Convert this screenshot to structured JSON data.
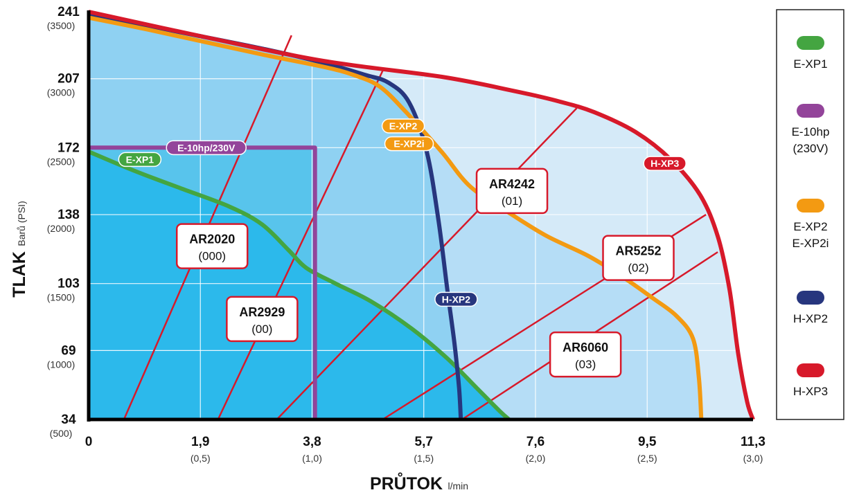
{
  "chart_data": {
    "type": "line",
    "y_axis": {
      "title": "TLAK",
      "unit": "Barů (PSI)",
      "ticks": [
        {
          "value": 34,
          "label": "34",
          "sublabel": "(500)"
        },
        {
          "value": 69,
          "label": "69",
          "sublabel": "(1000)"
        },
        {
          "value": 103,
          "label": "103",
          "sublabel": "(1500)"
        },
        {
          "value": 138,
          "label": "138",
          "sublabel": "(2000)"
        },
        {
          "value": 172,
          "label": "172",
          "sublabel": "(2500)"
        },
        {
          "value": 207,
          "label": "207",
          "sublabel": "(3000)"
        },
        {
          "value": 241,
          "label": "241",
          "sublabel": "(3500)"
        }
      ],
      "range": [
        34,
        241
      ]
    },
    "x_axis": {
      "title": "PRŮTOK",
      "unit": "l/min",
      "ticks": [
        {
          "value": 0,
          "label": "0",
          "sublabel": ""
        },
        {
          "value": 1.9,
          "label": "1,9",
          "sublabel": "(0,5)"
        },
        {
          "value": 3.8,
          "label": "3,8",
          "sublabel": "(1,0)"
        },
        {
          "value": 5.7,
          "label": "5,7",
          "sublabel": "(1,5)"
        },
        {
          "value": 7.6,
          "label": "7,6",
          "sublabel": "(2,0)"
        },
        {
          "value": 9.5,
          "label": "9,5",
          "sublabel": "(2,5)"
        },
        {
          "value": 11.3,
          "label": "11,3",
          "sublabel": "(3,0)"
        }
      ],
      "range": [
        0,
        11.3
      ]
    },
    "grid": true,
    "series": [
      {
        "name": "H-XP3",
        "color": "#d7192a",
        "fill": "#d5eaf8",
        "points": [
          [
            0,
            241
          ],
          [
            2.0,
            228
          ],
          [
            4.0,
            216
          ],
          [
            6.0,
            208
          ],
          [
            7.2,
            201
          ],
          [
            8.0,
            195.5
          ],
          [
            8.6,
            190
          ],
          [
            9.3,
            180
          ],
          [
            9.9,
            166
          ],
          [
            10.4,
            148
          ],
          [
            10.7,
            127
          ],
          [
            10.9,
            100
          ],
          [
            11.05,
            67
          ],
          [
            11.2,
            43
          ],
          [
            11.3,
            34
          ]
        ]
      },
      {
        "name": "E-XP2",
        "color": "#f39a12",
        "fill": "#b5ddf6",
        "points": [
          [
            0,
            238
          ],
          [
            1.0,
            232
          ],
          [
            2.0,
            225.5
          ],
          [
            3.0,
            219
          ],
          [
            4.0,
            213
          ],
          [
            4.5,
            209
          ],
          [
            4.95,
            203
          ],
          [
            5.4,
            190
          ],
          [
            6.0,
            170
          ],
          [
            6.5,
            152
          ],
          [
            7.2,
            138
          ],
          [
            7.8,
            127
          ],
          [
            8.5,
            117
          ],
          [
            9.1,
            106
          ],
          [
            9.6,
            95.5
          ],
          [
            10.0,
            86.5
          ],
          [
            10.28,
            75
          ],
          [
            10.38,
            55
          ],
          [
            10.42,
            34
          ]
        ]
      },
      {
        "name": "H-XP2",
        "color": "#27367e",
        "fill": "#8fd1f2",
        "points": [
          [
            0,
            240
          ],
          [
            1.5,
            231
          ],
          [
            3.0,
            222
          ],
          [
            4.0,
            215
          ],
          [
            4.7,
            209
          ],
          [
            5.1,
            205
          ],
          [
            5.45,
            195
          ],
          [
            5.75,
            170
          ],
          [
            5.95,
            135
          ],
          [
            6.1,
            100
          ],
          [
            6.22,
            73
          ],
          [
            6.3,
            50
          ],
          [
            6.33,
            34
          ]
        ]
      },
      {
        "name": "E-10hp/230V",
        "color": "#93449a",
        "fill": "#58c4ec",
        "points": [
          [
            0,
            172
          ],
          [
            3.85,
            172
          ],
          [
            3.85,
            34
          ]
        ]
      },
      {
        "name": "E-XP1",
        "color": "#44a541",
        "fill": "#2cb9eb",
        "points": [
          [
            0,
            170
          ],
          [
            0.8,
            160
          ],
          [
            1.6,
            151
          ],
          [
            2.4,
            142
          ],
          [
            2.95,
            133
          ],
          [
            3.4,
            120
          ],
          [
            3.7,
            111
          ],
          [
            4.2,
            103
          ],
          [
            4.8,
            94
          ],
          [
            5.5,
            80
          ],
          [
            6.1,
            65
          ],
          [
            6.6,
            50
          ],
          [
            7.0,
            38
          ],
          [
            7.15,
            34
          ]
        ]
      }
    ],
    "pill_labels": [
      {
        "text": "E-10hp/230V",
        "series": "E-10hp/230V",
        "at": [
          2.0,
          172
        ]
      },
      {
        "text": "E-XP1",
        "series": "E-XP1",
        "at": [
          0.87,
          166
        ]
      },
      {
        "text": "E-XP2",
        "series": "E-XP2",
        "at": [
          5.35,
          183
        ]
      },
      {
        "text": "E-XP2i",
        "series": "E-XP2",
        "at": [
          5.45,
          174
        ]
      },
      {
        "text": "H-XP2",
        "series": "H-XP2",
        "at": [
          6.25,
          95
        ]
      },
      {
        "text": "H-XP3",
        "series": "H-XP3",
        "at": [
          9.8,
          164
        ]
      }
    ],
    "model_lines": [
      {
        "name": "AR2020",
        "code": "(000)",
        "from": [
          0.6,
          34
        ],
        "to": [
          3.45,
          229
        ],
        "label_at": [
          2.1,
          122
        ]
      },
      {
        "name": "AR2929",
        "code": "(00)",
        "from": [
          2.2,
          34
        ],
        "to": [
          5.0,
          211
        ],
        "label_at": [
          2.95,
          85
        ]
      },
      {
        "name": "AR4242",
        "code": "(01)",
        "from": [
          3.2,
          34
        ],
        "to": [
          8.3,
          192
        ],
        "label_at": [
          7.2,
          150
        ]
      },
      {
        "name": "AR5252",
        "code": "(02)",
        "from": [
          5.0,
          34
        ],
        "to": [
          10.5,
          138
        ],
        "label_at": [
          9.35,
          116
        ]
      },
      {
        "name": "AR6060",
        "code": "(03)",
        "from": [
          6.35,
          34
        ],
        "to": [
          10.7,
          119
        ],
        "label_at": [
          8.45,
          67
        ]
      }
    ],
    "legend": {
      "position": "right",
      "items": [
        {
          "color": "#44a541",
          "lines": [
            "E-XP1"
          ]
        },
        {
          "color": "#93449a",
          "lines": [
            "E-10hp",
            "(230V)"
          ]
        },
        {
          "color": "#f39a12",
          "lines": [
            "E-XP2",
            "E-XP2i"
          ]
        },
        {
          "color": "#27367e",
          "lines": [
            "H-XP2"
          ]
        },
        {
          "color": "#d7192a",
          "lines": [
            "H-XP3"
          ]
        }
      ]
    }
  }
}
